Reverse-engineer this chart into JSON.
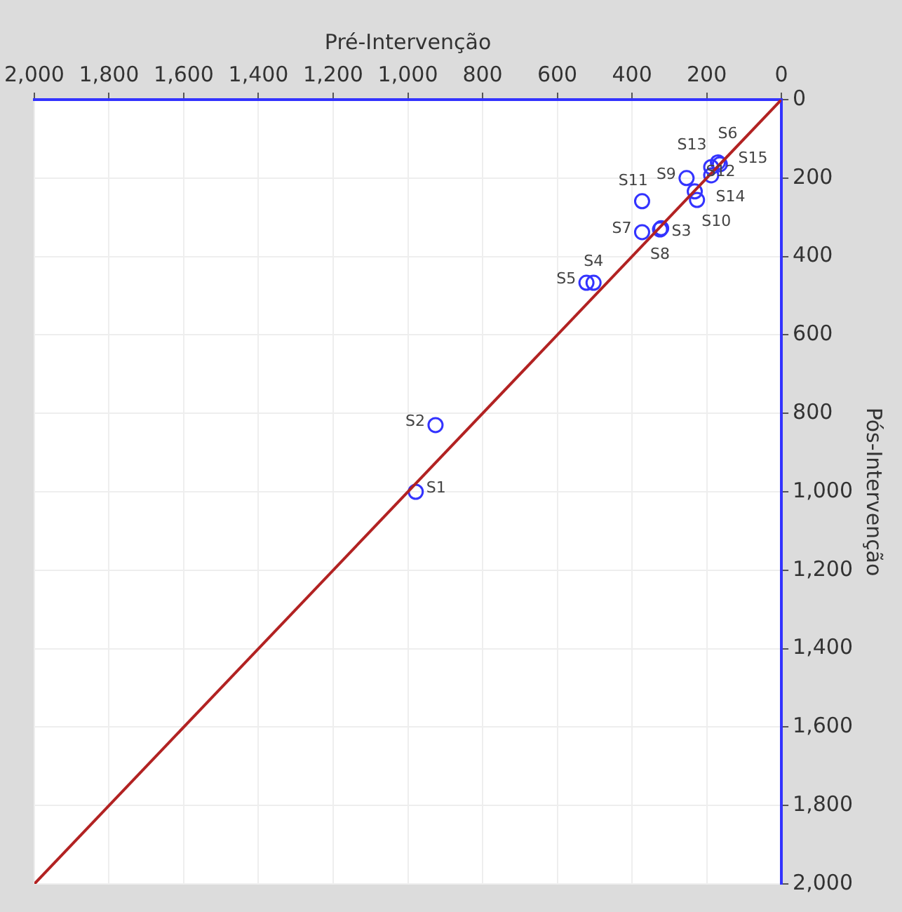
{
  "chart_data": {
    "type": "scatter",
    "xlabel": "Pré-Intervenção",
    "ylabel": "Pós-Intervenção",
    "xlim": [
      2000,
      0
    ],
    "ylim": [
      2000,
      0
    ],
    "xticks": [
      {
        "value": 2000,
        "label": "2,000"
      },
      {
        "value": 1800,
        "label": "1,800"
      },
      {
        "value": 1600,
        "label": "1,600"
      },
      {
        "value": 1400,
        "label": "1,400"
      },
      {
        "value": 1200,
        "label": "1,200"
      },
      {
        "value": 1000,
        "label": "1,000"
      },
      800,
      600,
      400,
      200,
      0
    ],
    "yticks": [
      0,
      200,
      400,
      600,
      800,
      {
        "value": 1000,
        "label": "1,000"
      },
      {
        "value": 1200,
        "label": "1,200"
      },
      {
        "value": 1400,
        "label": "1,400"
      },
      {
        "value": 1600,
        "label": "1,600"
      },
      {
        "value": 1800,
        "label": "1,800"
      },
      {
        "value": 2000,
        "label": "2,000"
      }
    ],
    "grid": true,
    "legend": false,
    "series": [
      {
        "type": "line",
        "color": "#b22222",
        "marker": "none",
        "x": [
          0,
          2000
        ],
        "values": [
          0,
          2000
        ]
      },
      {
        "color": "#3333ff",
        "marker": "circle",
        "x": [
          979,
          926,
          322,
          503,
          522,
          170,
          373,
          325,
          254,
          226,
          373,
          232,
          188,
          188,
          165
        ],
        "values": [
          1000,
          830,
          328,
          467,
          467,
          160,
          338,
          331,
          200,
          256,
          259,
          234,
          172,
          193,
          165
        ],
        "value_labels": [
          "S1",
          "S2",
          "S3",
          "S4",
          "S5",
          "S6",
          "S7",
          "S8",
          "S9",
          "S10",
          "S11",
          "S12",
          "S13",
          "S14",
          "S15"
        ]
      }
    ]
  }
}
